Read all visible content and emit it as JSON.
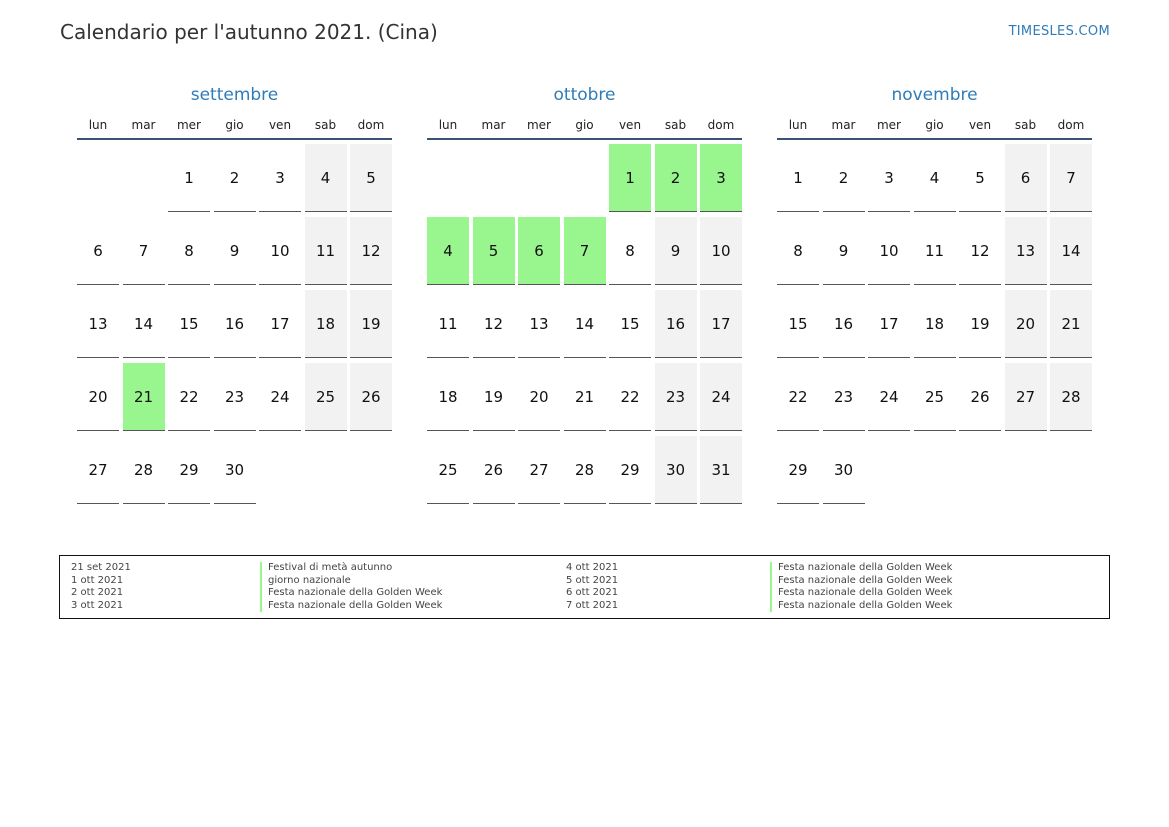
{
  "header": {
    "title": "Calendario per l'autunno 2021. (Cina)",
    "brand": "TIMESLES.COM"
  },
  "colors": {
    "accent": "#2e7cb8",
    "holiday": "#99f68f",
    "weekend": "#f2f2f2",
    "rule": "#3a5273"
  },
  "weekdays": [
    "lun",
    "mar",
    "mer",
    "gio",
    "ven",
    "sab",
    "dom"
  ],
  "months": [
    {
      "name": "settembre",
      "start_weekday": 2,
      "days": 30,
      "holidays": [
        21
      ]
    },
    {
      "name": "ottobre",
      "start_weekday": 4,
      "days": 31,
      "holidays": [
        1,
        2,
        3,
        4,
        5,
        6,
        7
      ]
    },
    {
      "name": "novembre",
      "start_weekday": 0,
      "days": 30,
      "holidays": []
    }
  ],
  "legend": {
    "left": [
      {
        "date": "21 set 2021",
        "name": "Festival di metà autunno"
      },
      {
        "date": "1 ott 2021",
        "name": "giorno nazionale"
      },
      {
        "date": "2 ott 2021",
        "name": "Festa nazionale della Golden Week"
      },
      {
        "date": "3 ott 2021",
        "name": "Festa nazionale della Golden Week"
      }
    ],
    "right": [
      {
        "date": "4 ott 2021",
        "name": "Festa nazionale della Golden Week"
      },
      {
        "date": "5 ott 2021",
        "name": "Festa nazionale della Golden Week"
      },
      {
        "date": "6 ott 2021",
        "name": "Festa nazionale della Golden Week"
      },
      {
        "date": "7 ott 2021",
        "name": "Festa nazionale della Golden Week"
      }
    ]
  }
}
